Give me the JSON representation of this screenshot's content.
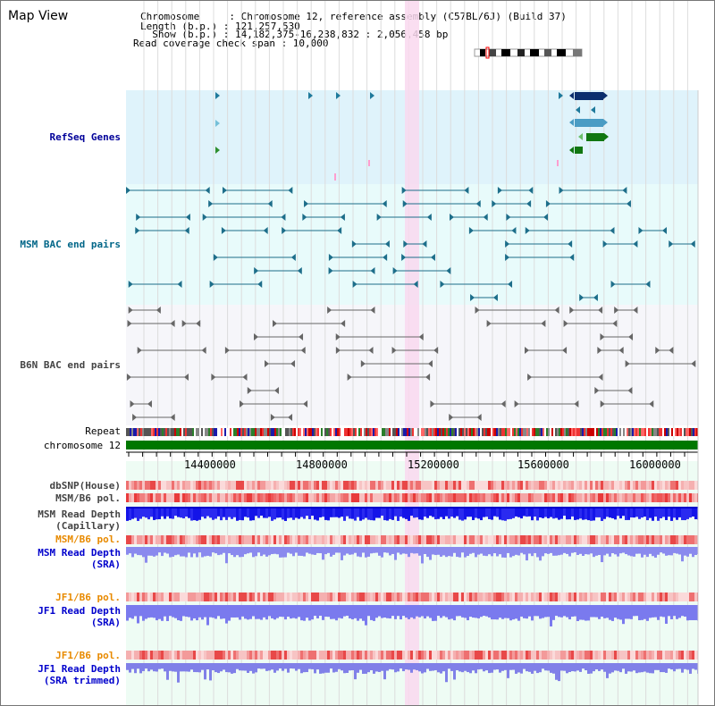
{
  "page": {
    "title": "Map View"
  },
  "info": {
    "line1": "Chromosome     : Chromosome 12, reference assembly (C57BL/6J) (Build 37)",
    "line2": "Length (b.p.) : 121,257,530",
    "line3": "  Show (b.p.) : 14,182,375-16,238,832 : 2,056,458 bp",
    "line4": "Read coverage check span : 10,000"
  },
  "tracks": {
    "refseq": "RefSeq Genes",
    "msm_bac": "MSM BAC end pairs",
    "b6n_bac": "B6N BAC end pairs",
    "repeat": "Repeat",
    "chromosome": "chromosome 12",
    "dbsnp": "dbSNP(House)",
    "msmb6_1": "MSM/B6 pol.",
    "msm_depth_cap_1": "MSM Read Depth",
    "msm_depth_cap_2": "(Capillary)",
    "msmb6_2": "MSM/B6 pol.",
    "msm_depth_sra_1": "MSM Read Depth",
    "msm_depth_sra_2": "(SRA)",
    "jf1b6_1": "JF1/B6 pol.",
    "jf1_depth_1": "JF1 Read Depth",
    "jf1_depth_2": "(SRA)",
    "jf1b6_2": "JF1/B6 pol.",
    "jf1_trim_1": "JF1 Read Depth",
    "jf1_trim_2": "(SRA trimmed)"
  },
  "axis": {
    "ticks": [
      "14400000",
      "14800000",
      "15200000",
      "15600000",
      "16000000"
    ]
  },
  "colors": {
    "refseq_bg": "#dff3fb",
    "msm_bg": "#e8fbfb",
    "b6n_bg": "#f6f6fa",
    "chrom_green": "#007700",
    "highlight": "#f9d8ef",
    "depth_blue": "#1a1aee",
    "sra_blue": "#8888ee",
    "pol_red": "#ee4444"
  }
}
